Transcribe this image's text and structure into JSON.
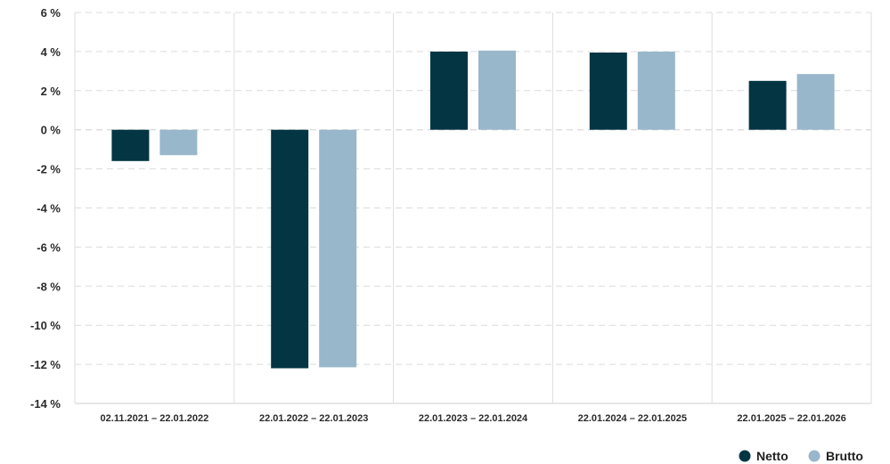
{
  "chart_data": {
    "type": "bar",
    "categories": [
      "02.11.2021 – 22.01.2022",
      "22.01.2022 – 22.01.2023",
      "22.01.2023 – 22.01.2024",
      "22.01.2024 – 22.01.2025",
      "22.01.2025 – 22.01.2026"
    ],
    "series": [
      {
        "name": "Netto",
        "color": "#033543",
        "values": [
          -1.6,
          -12.2,
          4.0,
          3.95,
          2.5
        ]
      },
      {
        "name": "Brutto",
        "color": "#98b7cb",
        "values": [
          -1.3,
          -12.15,
          4.05,
          4.0,
          2.85
        ]
      }
    ],
    "yticks": [
      "6 %",
      "4 %",
      "2 %",
      "0 %",
      "-2 %",
      "-4 %",
      "-6 %",
      "-8 %",
      "-10 %",
      "-12 %",
      "-14 %"
    ],
    "ytick_values": [
      6,
      4,
      2,
      0,
      -2,
      -4,
      -6,
      -8,
      -10,
      -12,
      -14
    ],
    "ylim": [
      -14,
      6
    ],
    "grid": true,
    "legend": "bottom-right"
  }
}
